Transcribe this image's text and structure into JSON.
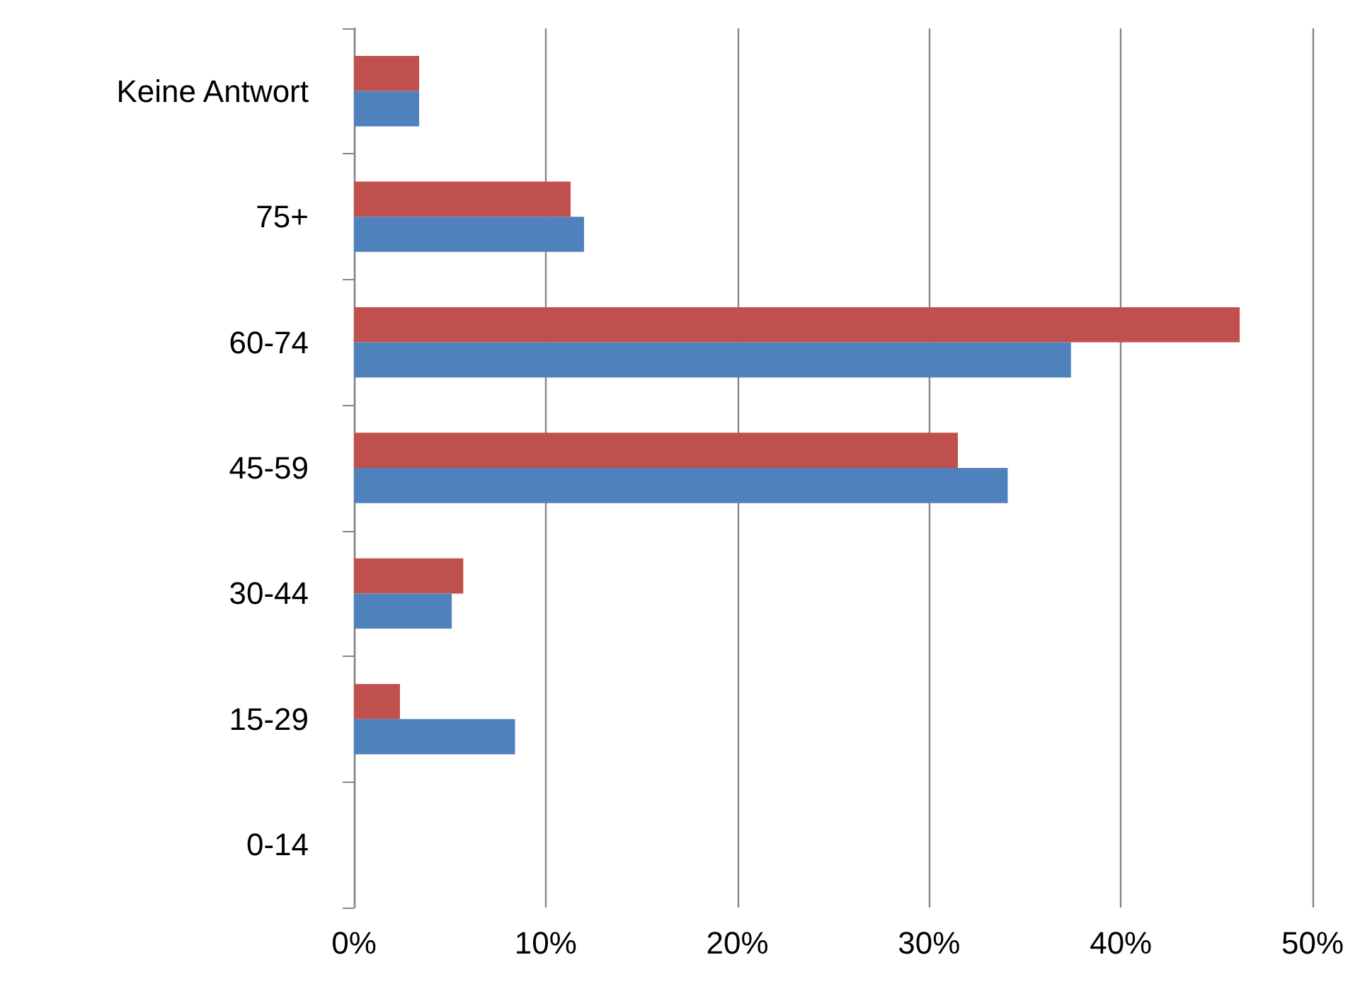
{
  "chart_data": {
    "type": "bar",
    "orientation": "horizontal",
    "categories": [
      "Keine Antwort",
      "75+",
      "60-74",
      "45-59",
      "30-44",
      "15-29",
      "0-14"
    ],
    "series": [
      {
        "color": "#c0504d",
        "values": [
          3.4,
          11.3,
          46.2,
          31.5,
          5.7,
          2.4,
          0
        ]
      },
      {
        "color": "#4f81bd",
        "values": [
          3.4,
          12.0,
          37.4,
          34.1,
          5.1,
          8.4,
          0
        ]
      }
    ],
    "xlim": [
      0,
      50
    ],
    "xticks": [
      {
        "value": 0,
        "label": "0%"
      },
      {
        "value": 10,
        "label": "10%"
      },
      {
        "value": 20,
        "label": "20%"
      },
      {
        "value": 30,
        "label": "30%"
      },
      {
        "value": 40,
        "label": "40%"
      },
      {
        "value": 50,
        "label": "50%"
      }
    ],
    "grid": "x"
  }
}
